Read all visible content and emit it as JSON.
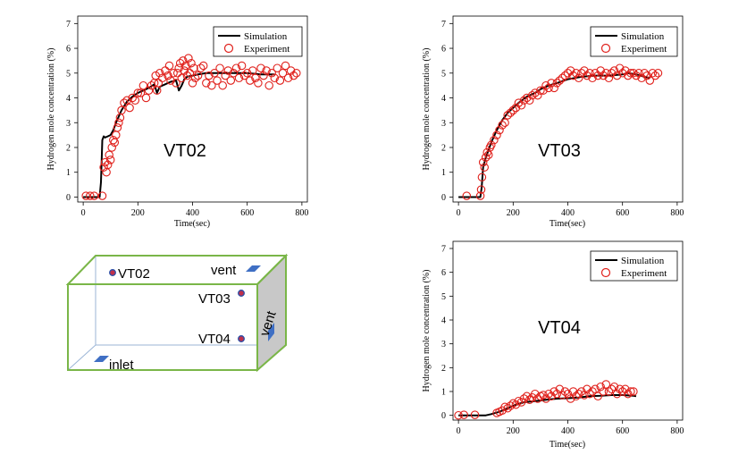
{
  "chart_data": [
    {
      "type": "line",
      "panel": "VT02",
      "title": "VT02",
      "xlabel": "Time(sec)",
      "ylabel": "Hydrogen mole concentration (%)",
      "xlim": [
        -20,
        820
      ],
      "ylim": [
        -0.2,
        7.3
      ],
      "xticks": [
        0,
        200,
        400,
        600,
        800
      ],
      "yticks": [
        0,
        1,
        2,
        3,
        4,
        5,
        6,
        7
      ],
      "legend_position": "top-right",
      "legend": [
        "Simulation",
        "Experiment"
      ],
      "series": [
        {
          "name": "Simulation",
          "x": [
            0,
            60,
            65,
            70,
            75,
            80,
            90,
            100,
            110,
            120,
            140,
            160,
            180,
            200,
            220,
            240,
            260,
            270,
            280,
            300,
            320,
            340,
            350,
            360,
            370,
            380,
            400,
            420,
            450,
            500,
            550,
            600,
            650,
            700
          ],
          "y": [
            0,
            0,
            0.6,
            2.3,
            2.45,
            2.4,
            2.45,
            2.5,
            2.7,
            3.0,
            3.5,
            3.85,
            4.05,
            4.2,
            4.3,
            4.4,
            4.55,
            4.2,
            4.45,
            4.55,
            4.65,
            4.7,
            4.3,
            4.5,
            4.75,
            4.85,
            4.9,
            4.95,
            5.0,
            5.0,
            5.0,
            5.0,
            4.95,
            4.95
          ]
        },
        {
          "name": "Experiment",
          "x": [
            10,
            25,
            40,
            70,
            75,
            80,
            85,
            90,
            95,
            100,
            105,
            110,
            115,
            120,
            125,
            130,
            135,
            140,
            150,
            160,
            170,
            180,
            190,
            200,
            210,
            220,
            230,
            240,
            250,
            260,
            265,
            270,
            275,
            280,
            290,
            300,
            310,
            315,
            320,
            330,
            340,
            345,
            350,
            355,
            360,
            365,
            370,
            375,
            380,
            385,
            390,
            395,
            400,
            405,
            410,
            420,
            430,
            440,
            450,
            460,
            470,
            480,
            490,
            500,
            510,
            520,
            530,
            540,
            550,
            560,
            570,
            580,
            590,
            600,
            610,
            620,
            630,
            640,
            650,
            660,
            670,
            680,
            690,
            700,
            710,
            720,
            730,
            740,
            750,
            760,
            770,
            780
          ],
          "y": [
            0.05,
            0.05,
            0.05,
            0.05,
            1.2,
            1.4,
            1.0,
            1.3,
            1.7,
            1.5,
            2.0,
            2.3,
            2.2,
            2.5,
            2.8,
            3.0,
            3.2,
            3.5,
            3.8,
            3.9,
            3.6,
            4.0,
            3.9,
            4.2,
            4.2,
            4.5,
            4.0,
            4.3,
            4.5,
            4.6,
            4.9,
            4.3,
            4.6,
            5.0,
            4.8,
            5.1,
            4.9,
            5.3,
            4.7,
            5.0,
            4.6,
            5.0,
            5.2,
            5.4,
            4.8,
            5.5,
            5.1,
            5.3,
            4.9,
            5.6,
            5.0,
            5.4,
            4.6,
            5.2,
            4.8,
            4.9,
            5.2,
            5.3,
            4.6,
            4.9,
            4.5,
            5.0,
            4.7,
            5.2,
            4.5,
            4.9,
            5.1,
            4.7,
            5.0,
            5.2,
            4.8,
            5.3,
            4.9,
            5.0,
            4.7,
            5.1,
            4.8,
            4.6,
            5.2,
            4.9,
            5.1,
            4.5,
            5.0,
            4.8,
            5.2,
            4.7,
            5.0,
            5.3,
            4.8,
            5.1,
            4.9,
            5.0
          ]
        }
      ]
    },
    {
      "type": "line",
      "panel": "VT03",
      "title": "VT03",
      "xlabel": "Time(sec)",
      "ylabel": "Hydrogen mole concentration (%)",
      "xlim": [
        -20,
        820
      ],
      "ylim": [
        -0.2,
        7.3
      ],
      "xticks": [
        0,
        200,
        400,
        600,
        800
      ],
      "yticks": [
        0,
        1,
        2,
        3,
        4,
        5,
        6,
        7
      ],
      "legend_position": "top-right",
      "legend": [
        "Simulation",
        "Experiment"
      ],
      "series": [
        {
          "name": "Simulation",
          "x": [
            0,
            80,
            85,
            90,
            100,
            110,
            120,
            140,
            160,
            180,
            200,
            220,
            250,
            280,
            300,
            330,
            360,
            400,
            450,
            500,
            550,
            600,
            620,
            650,
            680,
            700
          ],
          "y": [
            0,
            0,
            0.4,
            1.2,
            1.6,
            1.9,
            2.2,
            2.7,
            3.1,
            3.4,
            3.6,
            3.8,
            4.05,
            4.2,
            4.35,
            4.5,
            4.6,
            4.75,
            4.85,
            4.9,
            4.9,
            4.95,
            5.0,
            4.95,
            4.85,
            4.8
          ]
        },
        {
          "name": "Experiment",
          "x": [
            30,
            80,
            83,
            86,
            90,
            95,
            100,
            105,
            110,
            115,
            120,
            130,
            140,
            150,
            160,
            170,
            180,
            190,
            200,
            210,
            220,
            230,
            240,
            250,
            260,
            270,
            280,
            290,
            300,
            310,
            320,
            330,
            340,
            350,
            360,
            370,
            380,
            390,
            400,
            410,
            420,
            430,
            440,
            450,
            460,
            470,
            480,
            490,
            500,
            510,
            520,
            530,
            540,
            550,
            560,
            570,
            580,
            590,
            600,
            610,
            620,
            630,
            640,
            650,
            660,
            670,
            680,
            690,
            700,
            710,
            720,
            730
          ],
          "y": [
            0.05,
            0.05,
            0.3,
            0.8,
            1.4,
            1.2,
            1.6,
            1.8,
            1.7,
            2.0,
            2.1,
            2.3,
            2.5,
            2.7,
            2.9,
            3.0,
            3.3,
            3.4,
            3.5,
            3.6,
            3.8,
            3.7,
            3.9,
            4.0,
            3.9,
            4.1,
            4.2,
            4.1,
            4.3,
            4.3,
            4.5,
            4.4,
            4.6,
            4.4,
            4.6,
            4.7,
            4.8,
            4.9,
            5.0,
            5.1,
            4.9,
            5.0,
            4.8,
            5.0,
            5.1,
            4.9,
            5.0,
            4.8,
            5.0,
            4.9,
            5.1,
            4.9,
            5.0,
            4.8,
            5.0,
            5.1,
            4.9,
            5.2,
            5.0,
            5.1,
            4.9,
            5.0,
            5.0,
            4.9,
            5.0,
            4.8,
            5.0,
            4.9,
            4.7,
            5.0,
            4.9,
            5.0
          ]
        }
      ]
    },
    {
      "type": "line",
      "panel": "VT04",
      "title": "VT04",
      "xlabel": "Time(sec)",
      "ylabel": "Hydrogen mole concentration (%)",
      "xlim": [
        -20,
        820
      ],
      "ylim": [
        -0.2,
        7.3
      ],
      "xticks": [
        0,
        200,
        400,
        600,
        800
      ],
      "yticks": [
        0,
        1,
        2,
        3,
        4,
        5,
        6,
        7
      ],
      "legend_position": "top-right",
      "legend": [
        "Simulation",
        "Experiment"
      ],
      "series": [
        {
          "name": "Simulation",
          "x": [
            0,
            100,
            120,
            150,
            180,
            200,
            240,
            280,
            320,
            360,
            400,
            440,
            480,
            520,
            560,
            600,
            640,
            650
          ],
          "y": [
            0,
            0,
            0.05,
            0.15,
            0.3,
            0.4,
            0.55,
            0.6,
            0.65,
            0.7,
            0.72,
            0.75,
            0.8,
            0.82,
            0.85,
            0.85,
            0.82,
            0.8
          ]
        },
        {
          "name": "Experiment",
          "x": [
            0,
            20,
            60,
            140,
            150,
            160,
            170,
            180,
            190,
            200,
            210,
            220,
            230,
            240,
            250,
            260,
            270,
            280,
            290,
            300,
            310,
            320,
            330,
            340,
            350,
            360,
            370,
            380,
            390,
            400,
            410,
            420,
            430,
            440,
            450,
            460,
            470,
            480,
            490,
            500,
            510,
            520,
            530,
            540,
            550,
            560,
            570,
            580,
            590,
            600,
            610,
            620,
            630,
            640
          ],
          "y": [
            0,
            0.02,
            0.02,
            0.1,
            0.15,
            0.2,
            0.35,
            0.3,
            0.4,
            0.5,
            0.45,
            0.6,
            0.55,
            0.7,
            0.8,
            0.65,
            0.75,
            0.9,
            0.7,
            0.8,
            0.85,
            0.7,
            0.9,
            0.8,
            1.0,
            0.9,
            1.1,
            0.85,
            1.0,
            0.9,
            0.7,
            1.0,
            0.8,
            0.9,
            1.0,
            0.85,
            1.1,
            0.9,
            1.0,
            1.1,
            0.8,
            1.2,
            1.0,
            1.3,
            1.0,
            1.1,
            1.2,
            0.9,
            1.1,
            1.0,
            1.1,
            0.9,
            1.0,
            1.0
          ]
        }
      ]
    }
  ],
  "diagram": {
    "labels": {
      "vt02": "VT02",
      "vt03": "VT03",
      "vt04": "VT04",
      "vent_top": "vent",
      "vent_side": "vent",
      "inlet": "inlet"
    },
    "colors": {
      "box_edge": "#7ab648",
      "side_fill": "#c8c8c8",
      "hidden_edge": "#9bb5d6",
      "vent": "#3f6fc4",
      "sensor_fill": "#c0304a",
      "sensor_ring": "#2a4ea8"
    }
  },
  "colors": {
    "simulation": "#000000",
    "experiment": "#e0201b"
  }
}
